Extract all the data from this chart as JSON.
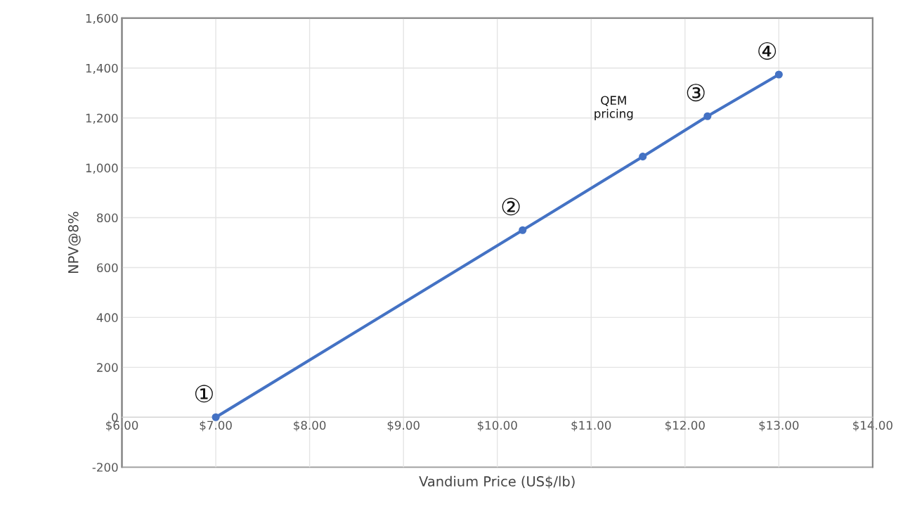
{
  "chart_data": {
    "type": "line",
    "xlabel": "Vandium Price (US$/lb)",
    "ylabel": "NPV@8%",
    "x": [
      7.0,
      10.27,
      11.55,
      12.24,
      13.0
    ],
    "series": [
      {
        "color": "#4472c4",
        "values": [
          0,
          750,
          1045,
          1207,
          1374
        ]
      }
    ],
    "marker": "circle",
    "line_style": "solid",
    "grid": true,
    "xlim": [
      6,
      14
    ],
    "ylim": [
      -200,
      1600
    ],
    "xticks": [
      {
        "value": 6,
        "label": "$6.00"
      },
      {
        "value": 7,
        "label": "$7.00"
      },
      {
        "value": 8,
        "label": "$8.00"
      },
      {
        "value": 9,
        "label": "$9.00"
      },
      {
        "value": 10,
        "label": "$10.00"
      },
      {
        "value": 11,
        "label": "$11.00"
      },
      {
        "value": 12,
        "label": "$12.00"
      },
      {
        "value": 13,
        "label": "$13.00"
      },
      {
        "value": 14,
        "label": "$14.00"
      }
    ],
    "yticks": [
      -200,
      0,
      200,
      400,
      600,
      800,
      {
        "value": 1000,
        "label": "1,000"
      },
      {
        "value": 1200,
        "label": "1,200"
      },
      {
        "value": 1400,
        "label": "1,400"
      },
      {
        "value": 1600,
        "label": "1,600"
      }
    ],
    "annotations": [
      {
        "text": "①",
        "x": 7.0,
        "y": 0
      },
      {
        "text": "②",
        "x": 10.27,
        "y": 750
      },
      "QEM\npricing",
      {
        "text": "③",
        "x": 12.24,
        "y": 1207
      },
      {
        "text": "④",
        "x": 13.0,
        "y": 1374
      }
    ]
  }
}
